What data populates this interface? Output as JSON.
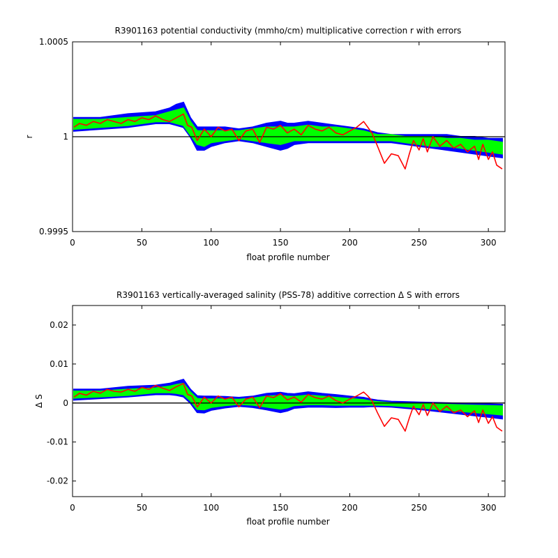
{
  "chart_data": [
    {
      "type": "line",
      "title": "R3901163 potential conductivity (mmho/cm) multiplicative correction r with errors",
      "xlabel": "float profile number",
      "ylabel": "r",
      "xlim": [
        0,
        312
      ],
      "ylim": [
        0.9995,
        1.0005
      ],
      "xticks": [
        0,
        50,
        100,
        150,
        200,
        250,
        300
      ],
      "xtick_labels": [
        "0",
        "50",
        "100",
        "150",
        "200",
        "250",
        "300"
      ],
      "yticks": [
        0.9995,
        1.0,
        1.0005
      ],
      "ytick_labels": [
        "0.9995",
        "1",
        "1.0005"
      ],
      "grid": false,
      "reference_line": 1.0,
      "series": [
        {
          "color": "#0000ff",
          "kind": "error_band",
          "x": [
            1,
            20,
            40,
            60,
            70,
            75,
            80,
            85,
            90,
            95,
            100,
            110,
            120,
            130,
            140,
            150,
            155,
            160,
            170,
            180,
            190,
            200,
            210,
            215,
            220,
            230,
            240,
            250,
            260,
            270,
            280,
            290,
            300,
            310
          ],
          "upper": [
            1.0001,
            1.0001,
            1.00012,
            1.00013,
            1.00015,
            1.00017,
            1.00018,
            1.0001,
            1.00005,
            1.00005,
            1.00005,
            1.00005,
            1.00004,
            1.00005,
            1.00007,
            1.00008,
            1.00007,
            1.00007,
            1.00008,
            1.00007,
            1.00006,
            1.00005,
            1.00004,
            1.00003,
            1.00002,
            1.00001,
            1.00001,
            1.00001,
            1.00001,
            1.00001,
            1.0,
            1.0,
            0.99999,
            0.99999
          ],
          "lower": [
            1.00003,
            1.00004,
            1.00005,
            1.00007,
            1.00007,
            1.00006,
            1.00005,
            1.0,
            0.99993,
            0.99993,
            0.99995,
            0.99997,
            0.99998,
            0.99997,
            0.99995,
            0.99993,
            0.99994,
            0.99996,
            0.99997,
            0.99997,
            0.99997,
            0.99997,
            0.99997,
            0.99997,
            0.99997,
            0.99997,
            0.99996,
            0.99995,
            0.99994,
            0.99993,
            0.99992,
            0.99991,
            0.9999,
            0.99989
          ]
        },
        {
          "color": "#00ff00",
          "kind": "fit_band",
          "x": [
            1,
            20,
            40,
            60,
            70,
            75,
            80,
            85,
            90,
            95,
            100,
            110,
            120,
            130,
            140,
            150,
            155,
            160,
            170,
            180,
            190,
            200,
            210,
            215,
            220,
            230,
            240,
            250,
            260,
            270,
            280,
            290,
            300,
            310
          ],
          "upper": [
            1.00009,
            1.00009,
            1.0001,
            1.00011,
            1.00013,
            1.00014,
            1.00015,
            1.00008,
            1.00003,
            1.00003,
            1.00003,
            1.00003,
            1.00003,
            1.00004,
            1.00005,
            1.00005,
            1.00005,
            1.00005,
            1.00006,
            1.00005,
            1.00005,
            1.00004,
            1.00003,
            1.00002,
            1.00001,
            1.00001,
            1.0,
            1.0,
            1.0,
            0.99999,
            0.99999,
            0.99998,
            0.99998,
            0.99997
          ],
          "lower": [
            1.00004,
            1.00005,
            1.00006,
            1.00008,
            1.00008,
            1.00007,
            1.00006,
            1.00001,
            0.99996,
            0.99995,
            0.99997,
            0.99998,
            0.99999,
            0.99998,
            0.99997,
            0.99996,
            0.99997,
            0.99998,
            0.99998,
            0.99998,
            0.99998,
            0.99998,
            0.99998,
            0.99998,
            0.99998,
            0.99998,
            0.99997,
            0.99996,
            0.99995,
            0.99995,
            0.99994,
            0.99993,
            0.99992,
            0.99991
          ]
        },
        {
          "color": "#ff0000",
          "kind": "line",
          "x": [
            1,
            5,
            10,
            15,
            20,
            25,
            30,
            35,
            40,
            45,
            50,
            55,
            60,
            65,
            70,
            75,
            80,
            83,
            86,
            90,
            95,
            100,
            105,
            110,
            115,
            120,
            125,
            130,
            135,
            140,
            145,
            150,
            155,
            160,
            165,
            170,
            175,
            180,
            185,
            190,
            195,
            200,
            205,
            210,
            213,
            216,
            220,
            225,
            230,
            235,
            240,
            243,
            246,
            250,
            253,
            256,
            260,
            265,
            270,
            275,
            280,
            285,
            290,
            293,
            296,
            300,
            303,
            306,
            310
          ],
          "y": [
            1.00005,
            1.00007,
            1.00006,
            1.00008,
            1.00007,
            1.00009,
            1.00008,
            1.00007,
            1.00009,
            1.00008,
            1.0001,
            1.00009,
            1.00011,
            1.00009,
            1.00008,
            1.0001,
            1.00012,
            1.00006,
            1.00005,
            0.99998,
            1.00004,
            1.0,
            1.00005,
            1.00003,
            1.00004,
            0.99998,
            1.00003,
            1.00004,
            0.99997,
            1.00005,
            1.00004,
            1.00006,
            1.00002,
            1.00004,
            1.00001,
            1.00006,
            1.00004,
            1.00003,
            1.00005,
            1.00002,
            1.00001,
            1.00003,
            1.00005,
            1.00008,
            1.00005,
            1.00002,
            0.99995,
            0.99986,
            0.99991,
            0.9999,
            0.99983,
            0.99991,
            0.99998,
            0.99993,
            0.99999,
            0.99992,
            1.0,
            0.99995,
            0.99998,
            0.99994,
            0.99996,
            0.99992,
            0.99995,
            0.99988,
            0.99996,
            0.99988,
            0.99992,
            0.99985,
            0.99983
          ]
        }
      ]
    },
    {
      "type": "line",
      "title": "R3901163 vertically-averaged salinity (PSS-78) additive correction Δ S with errors",
      "xlabel": "float profile number",
      "ylabel": "Δ S",
      "xlim": [
        0,
        312
      ],
      "ylim": [
        -0.024,
        0.025
      ],
      "xticks": [
        0,
        50,
        100,
        150,
        200,
        250,
        300
      ],
      "xtick_labels": [
        "0",
        "50",
        "100",
        "150",
        "200",
        "250",
        "300"
      ],
      "yticks": [
        -0.02,
        -0.01,
        0,
        0.01,
        0.02
      ],
      "ytick_labels": [
        "-0.02",
        "-0.01",
        "0",
        "0.01",
        "0.02"
      ],
      "grid": false,
      "reference_line": 0,
      "series": [
        {
          "color": "#0000ff",
          "kind": "error_band",
          "x": [
            1,
            20,
            40,
            60,
            70,
            75,
            80,
            85,
            90,
            95,
            100,
            110,
            120,
            130,
            140,
            150,
            155,
            160,
            170,
            180,
            190,
            200,
            210,
            215,
            220,
            230,
            240,
            250,
            260,
            270,
            280,
            290,
            300,
            310
          ],
          "upper": [
            0.0035,
            0.0035,
            0.0042,
            0.0045,
            0.005,
            0.0055,
            0.006,
            0.0035,
            0.0018,
            0.0017,
            0.0017,
            0.0016,
            0.0014,
            0.0017,
            0.0024,
            0.0027,
            0.0024,
            0.0023,
            0.0028,
            0.0024,
            0.0021,
            0.0017,
            0.0014,
            0.001,
            0.0007,
            0.0004,
            0.0003,
            0.0002,
            0.0001,
            0.0,
            -0.0001,
            -0.0002,
            -0.0003,
            -0.0004
          ],
          "lower": [
            0.0008,
            0.0012,
            0.0016,
            0.0022,
            0.0022,
            0.002,
            0.0016,
            0.0,
            -0.0024,
            -0.0025,
            -0.0018,
            -0.0012,
            -0.0008,
            -0.0011,
            -0.0017,
            -0.0024,
            -0.002,
            -0.0013,
            -0.001,
            -0.001,
            -0.0011,
            -0.001,
            -0.001,
            -0.0009,
            -0.0009,
            -0.001,
            -0.0013,
            -0.0016,
            -0.002,
            -0.0024,
            -0.0028,
            -0.0032,
            -0.0036,
            -0.004
          ]
        },
        {
          "color": "#00ff00",
          "kind": "fit_band",
          "x": [
            1,
            20,
            40,
            60,
            70,
            75,
            80,
            85,
            90,
            95,
            100,
            110,
            120,
            130,
            140,
            150,
            155,
            160,
            170,
            180,
            190,
            200,
            210,
            215,
            220,
            230,
            240,
            250,
            260,
            270,
            280,
            290,
            300,
            310
          ],
          "upper": [
            0.003,
            0.003,
            0.0035,
            0.0038,
            0.0043,
            0.0047,
            0.005,
            0.0028,
            0.0011,
            0.001,
            0.001,
            0.001,
            0.0009,
            0.0012,
            0.0017,
            0.0019,
            0.0017,
            0.0016,
            0.002,
            0.0017,
            0.0014,
            0.0011,
            0.0008,
            0.0005,
            0.0003,
            0.0,
            -0.0001,
            -0.0002,
            -0.0003,
            -0.0004,
            -0.0005,
            -0.0006,
            -0.0007,
            -0.0008
          ],
          "lower": [
            0.0013,
            0.0016,
            0.002,
            0.0027,
            0.0027,
            0.0025,
            0.0022,
            0.0006,
            -0.0016,
            -0.0017,
            -0.0011,
            -0.0006,
            -0.0003,
            -0.0005,
            -0.001,
            -0.0015,
            -0.0012,
            -0.0006,
            -0.0004,
            -0.0004,
            -0.0005,
            -0.0005,
            -0.0005,
            -0.0005,
            -0.0005,
            -0.0006,
            -0.0009,
            -0.0012,
            -0.0015,
            -0.0018,
            -0.0021,
            -0.0024,
            -0.0027,
            -0.003
          ]
        },
        {
          "color": "#ff0000",
          "kind": "line",
          "x": [
            1,
            5,
            10,
            15,
            20,
            25,
            30,
            35,
            40,
            45,
            50,
            55,
            60,
            65,
            70,
            75,
            80,
            83,
            86,
            90,
            95,
            100,
            105,
            110,
            115,
            120,
            125,
            130,
            135,
            140,
            145,
            150,
            155,
            160,
            165,
            170,
            175,
            180,
            185,
            190,
            195,
            200,
            205,
            210,
            213,
            216,
            220,
            225,
            230,
            235,
            240,
            243,
            246,
            250,
            253,
            256,
            260,
            265,
            270,
            275,
            280,
            285,
            290,
            293,
            296,
            300,
            303,
            306,
            310
          ],
          "y": [
            0.0015,
            0.0025,
            0.002,
            0.003,
            0.0025,
            0.0035,
            0.003,
            0.0028,
            0.0035,
            0.003,
            0.004,
            0.0035,
            0.0045,
            0.0038,
            0.0032,
            0.0042,
            0.005,
            0.0022,
            0.0018,
            -0.001,
            0.0015,
            0.0,
            0.0018,
            0.001,
            0.0015,
            -0.001,
            0.001,
            0.0015,
            -0.0012,
            0.0018,
            0.0014,
            0.0024,
            0.0008,
            0.0015,
            0.0002,
            0.0022,
            0.0014,
            0.001,
            0.0018,
            0.0006,
            0.0,
            0.001,
            0.0018,
            0.0028,
            0.0018,
            0.0006,
            -0.0025,
            -0.006,
            -0.0038,
            -0.0042,
            -0.0072,
            -0.0038,
            -0.0008,
            -0.003,
            -0.0004,
            -0.0032,
            0.0,
            -0.0022,
            -0.0008,
            -0.0025,
            -0.0018,
            -0.0035,
            -0.002,
            -0.005,
            -0.0018,
            -0.0052,
            -0.0035,
            -0.0062,
            -0.0072
          ]
        }
      ]
    }
  ]
}
